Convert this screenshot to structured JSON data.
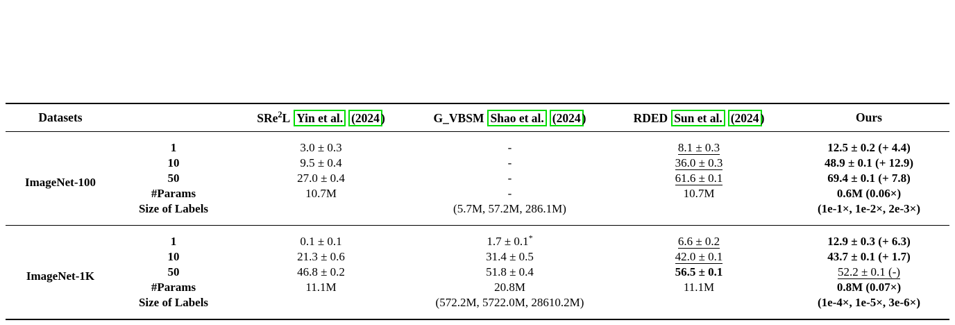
{
  "colors": {
    "cite_box": "#00dd00"
  },
  "header": {
    "datasets_label": "Datasets",
    "methods": [
      {
        "pre": "SRe",
        "sup": "2",
        "post": "L",
        "cite": "Yin et al.",
        "year_boxed": "(2024",
        "year_after": ")"
      },
      {
        "pre": "G_VBSM",
        "sup": "",
        "post": "",
        "cite": "Shao et al.",
        "year_boxed": "(2024",
        "year_after": ")"
      },
      {
        "pre": "RDED",
        "sup": "",
        "post": "",
        "cite": "Sun et al.",
        "year_boxed": "(2024",
        "year_after": ")"
      }
    ],
    "ours_label": "Ours"
  },
  "blocks": [
    {
      "dataset": "ImageNet-100",
      "rows": [
        {
          "label": "1",
          "cells": [
            {
              "t": "3.0 ± 0.3"
            },
            {
              "t": "-"
            },
            {
              "t": "8.1 ± 0.3",
              "u": true
            },
            {
              "t": "12.5 ± 0.2 (+ 4.4)",
              "b": true
            }
          ]
        },
        {
          "label": "10",
          "cells": [
            {
              "t": "9.5 ± 0.4"
            },
            {
              "t": "-"
            },
            {
              "t": "36.0 ± 0.3",
              "u": true
            },
            {
              "t": "48.9 ± 0.1 (+ 12.9)",
              "b": true
            }
          ]
        },
        {
          "label": "50",
          "cells": [
            {
              "t": "27.0 ± 0.4"
            },
            {
              "t": "-"
            },
            {
              "t": "61.6 ± 0.1",
              "u": true
            },
            {
              "t": "69.4 ± 0.1 (+ 7.8)",
              "b": true
            }
          ]
        },
        {
          "label": "#Params",
          "cells": [
            {
              "t": "10.7M"
            },
            {
              "t": "-"
            },
            {
              "t": "10.7M"
            },
            {
              "t": "0.6M (0.06×)",
              "b": true
            }
          ]
        },
        {
          "label": "Size of Labels",
          "cells": [
            {
              "t": ""
            },
            {
              "t": "(5.7M, 57.2M, 286.1M)"
            },
            {
              "t": ""
            },
            {
              "t": "(1e-1×, 1e-2×, 2e-3×)",
              "b": true
            }
          ]
        }
      ]
    },
    {
      "dataset": "ImageNet-1K",
      "rows": [
        {
          "label": "1",
          "cells": [
            {
              "t": "0.1 ± 0.1"
            },
            {
              "t": "1.7 ± 0.1",
              "sup": "*"
            },
            {
              "t": "6.6 ± 0.2",
              "u": true
            },
            {
              "t": "12.9 ± 0.3 (+ 6.3)",
              "b": true
            }
          ]
        },
        {
          "label": "10",
          "cells": [
            {
              "t": "21.3 ± 0.6"
            },
            {
              "t": "31.4 ± 0.5"
            },
            {
              "t": "42.0 ± 0.1",
              "u": true
            },
            {
              "t": "43.7 ± 0.1 (+ 1.7)",
              "b": true
            }
          ]
        },
        {
          "label": "50",
          "cells": [
            {
              "t": "46.8 ± 0.2"
            },
            {
              "t": "51.8 ± 0.4"
            },
            {
              "t": "56.5 ± 0.1",
              "b": true
            },
            {
              "t": "52.2 ± 0.1 (-)",
              "u": true
            }
          ]
        },
        {
          "label": "#Params",
          "cells": [
            {
              "t": "11.1M"
            },
            {
              "t": "20.8M"
            },
            {
              "t": "11.1M"
            },
            {
              "t": "0.8M (0.07×)",
              "b": true
            }
          ]
        },
        {
          "label": "Size of Labels",
          "cells": [
            {
              "t": ""
            },
            {
              "t": "(572.2M, 5722.0M, 28610.2M)"
            },
            {
              "t": ""
            },
            {
              "t": "(1e-4×, 1e-5×, 3e-6×)",
              "b": true
            }
          ]
        }
      ]
    }
  ]
}
